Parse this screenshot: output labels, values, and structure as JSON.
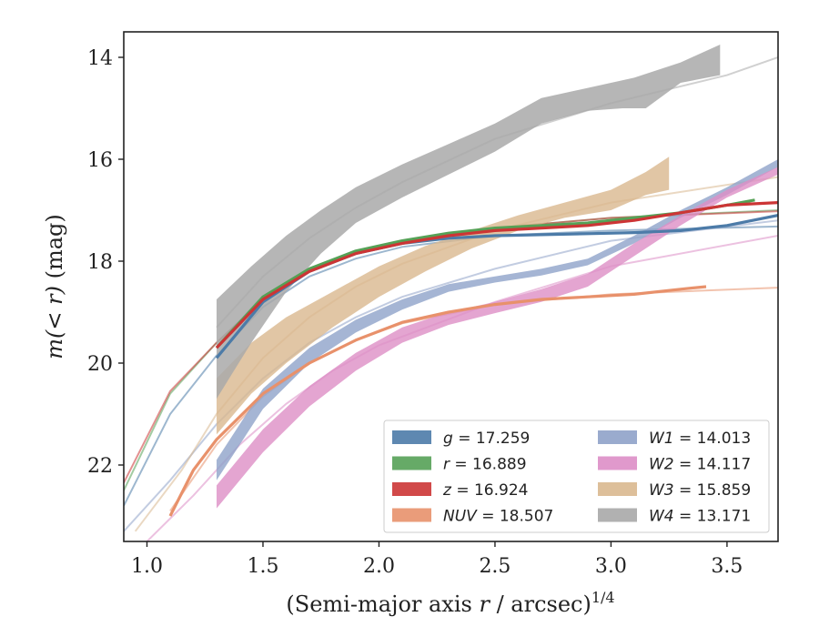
{
  "chart_data": {
    "type": "line",
    "title": "",
    "xlabel_main": "(Semi-major axis ",
    "xlabel_var": "r",
    "xlabel_tail": " / arcsec)",
    "xlabel_exp": "1/4",
    "ylabel_prefix": "m",
    "ylabel_math": "(< r)",
    "ylabel_unit": " (mag)",
    "xlim": [
      0.9,
      3.72
    ],
    "ylim": [
      23.5,
      13.5
    ],
    "y_inverted": true,
    "xticks": [
      1.0,
      1.5,
      2.0,
      2.5,
      3.0,
      3.5
    ],
    "xtick_labels": [
      "1.0",
      "1.5",
      "2.0",
      "2.5",
      "3.0",
      "3.5"
    ],
    "yticks": [
      14,
      16,
      18,
      20,
      22
    ],
    "ytick_labels": [
      "14",
      "16",
      "18",
      "20",
      "22"
    ],
    "grid": false,
    "legend_position": "lower-right",
    "series": [
      {
        "name": "g = 17.259",
        "band": "g",
        "mag": "17.259",
        "color": "#4c7ba8",
        "kind": "line",
        "data": [
          [
            1.3,
            19.9
          ],
          [
            1.5,
            18.8
          ],
          [
            1.7,
            18.2
          ],
          [
            1.9,
            17.85
          ],
          [
            2.1,
            17.65
          ],
          [
            2.3,
            17.55
          ],
          [
            2.5,
            17.5
          ],
          [
            2.7,
            17.48
          ],
          [
            2.9,
            17.46
          ],
          [
            3.1,
            17.44
          ],
          [
            3.3,
            17.4
          ],
          [
            3.5,
            17.3
          ],
          [
            3.72,
            17.1
          ]
        ],
        "model": [
          [
            0.9,
            22.8
          ],
          [
            1.1,
            21.0
          ],
          [
            1.3,
            19.85
          ],
          [
            1.5,
            18.9
          ],
          [
            1.7,
            18.3
          ],
          [
            1.9,
            17.95
          ],
          [
            2.1,
            17.72
          ],
          [
            2.5,
            17.5
          ],
          [
            3.0,
            17.4
          ],
          [
            3.72,
            17.32
          ]
        ]
      },
      {
        "name": "r = 16.889",
        "band": "r",
        "mag": "16.889",
        "color": "#55a156",
        "kind": "line",
        "data": [
          [
            1.3,
            19.7
          ],
          [
            1.5,
            18.7
          ],
          [
            1.7,
            18.15
          ],
          [
            1.9,
            17.8
          ],
          [
            2.1,
            17.6
          ],
          [
            2.3,
            17.45
          ],
          [
            2.5,
            17.35
          ],
          [
            2.7,
            17.3
          ],
          [
            2.9,
            17.25
          ],
          [
            3.1,
            17.15
          ],
          [
            3.3,
            17.05
          ],
          [
            3.5,
            16.9
          ],
          [
            3.62,
            16.8
          ]
        ],
        "model": [
          [
            0.9,
            22.5
          ],
          [
            1.1,
            20.6
          ],
          [
            1.3,
            19.6
          ],
          [
            1.5,
            18.75
          ],
          [
            1.7,
            18.2
          ],
          [
            1.9,
            17.85
          ],
          [
            2.1,
            17.62
          ],
          [
            2.5,
            17.35
          ],
          [
            3.0,
            17.15
          ],
          [
            3.72,
            17.0
          ]
        ]
      },
      {
        "name": "z = 16.924",
        "band": "z",
        "mag": "16.924",
        "color": "#cc3535",
        "kind": "line",
        "data": [
          [
            1.3,
            19.7
          ],
          [
            1.5,
            18.75
          ],
          [
            1.7,
            18.2
          ],
          [
            1.9,
            17.85
          ],
          [
            2.1,
            17.65
          ],
          [
            2.3,
            17.5
          ],
          [
            2.5,
            17.4
          ],
          [
            2.7,
            17.35
          ],
          [
            2.9,
            17.3
          ],
          [
            3.1,
            17.2
          ],
          [
            3.3,
            17.05
          ],
          [
            3.5,
            16.9
          ],
          [
            3.72,
            16.85
          ]
        ],
        "model": [
          [
            0.9,
            22.35
          ],
          [
            1.1,
            20.55
          ],
          [
            1.3,
            19.6
          ],
          [
            1.5,
            18.75
          ],
          [
            1.7,
            18.2
          ],
          [
            1.9,
            17.85
          ],
          [
            2.1,
            17.62
          ],
          [
            2.5,
            17.35
          ],
          [
            3.0,
            17.15
          ],
          [
            3.72,
            17.02
          ]
        ]
      },
      {
        "name": "NUV = 18.507",
        "band": "NUV",
        "mag": "18.507",
        "color": "#e8916b",
        "kind": "line",
        "data": [
          [
            1.1,
            23.0
          ],
          [
            1.2,
            22.1
          ],
          [
            1.3,
            21.5
          ],
          [
            1.5,
            20.6
          ],
          [
            1.7,
            20.0
          ],
          [
            1.9,
            19.55
          ],
          [
            2.1,
            19.2
          ],
          [
            2.3,
            19.0
          ],
          [
            2.5,
            18.85
          ],
          [
            2.7,
            18.75
          ],
          [
            2.9,
            18.7
          ],
          [
            3.1,
            18.65
          ],
          [
            3.3,
            18.55
          ],
          [
            3.41,
            18.5
          ]
        ],
        "model": [
          [
            1.1,
            22.9
          ],
          [
            1.3,
            21.6
          ],
          [
            1.5,
            20.65
          ],
          [
            1.7,
            20.0
          ],
          [
            1.9,
            19.55
          ],
          [
            2.1,
            19.22
          ],
          [
            2.5,
            18.85
          ],
          [
            3.0,
            18.65
          ],
          [
            3.72,
            18.52
          ]
        ]
      },
      {
        "name": "W1 = 14.013",
        "band": "W1",
        "mag": "14.013",
        "color": "#8fa2c9",
        "kind": "band",
        "upper": [
          [
            1.3,
            21.9
          ],
          [
            1.5,
            20.5
          ],
          [
            1.7,
            19.7
          ],
          [
            1.9,
            19.15
          ],
          [
            2.1,
            18.75
          ],
          [
            2.3,
            18.45
          ],
          [
            2.5,
            18.3
          ],
          [
            2.7,
            18.15
          ],
          [
            2.9,
            17.95
          ],
          [
            3.1,
            17.5
          ],
          [
            3.3,
            17.0
          ],
          [
            3.5,
            16.55
          ],
          [
            3.72,
            16.0
          ]
        ],
        "lower": [
          [
            1.3,
            22.3
          ],
          [
            1.5,
            20.9
          ],
          [
            1.7,
            20.0
          ],
          [
            1.9,
            19.4
          ],
          [
            2.1,
            18.95
          ],
          [
            2.3,
            18.6
          ],
          [
            2.5,
            18.42
          ],
          [
            2.7,
            18.28
          ],
          [
            2.9,
            18.08
          ],
          [
            3.1,
            17.65
          ],
          [
            3.3,
            17.15
          ],
          [
            3.5,
            16.7
          ],
          [
            3.72,
            16.15
          ]
        ],
        "model": [
          [
            0.9,
            23.3
          ],
          [
            1.1,
            22.3
          ],
          [
            1.3,
            21.2
          ],
          [
            1.5,
            20.3
          ],
          [
            1.7,
            19.6
          ],
          [
            1.9,
            19.1
          ],
          [
            2.1,
            18.7
          ],
          [
            2.5,
            18.15
          ],
          [
            3.0,
            17.6
          ],
          [
            3.72,
            17.2
          ]
        ]
      },
      {
        "name": "W2 = 14.117",
        "band": "W2",
        "mag": "14.117",
        "color": "#dd8ec6",
        "kind": "band",
        "upper": [
          [
            1.3,
            22.4
          ],
          [
            1.5,
            21.3
          ],
          [
            1.7,
            20.45
          ],
          [
            1.9,
            19.8
          ],
          [
            2.1,
            19.3
          ],
          [
            2.3,
            19.0
          ],
          [
            2.5,
            18.8
          ],
          [
            2.7,
            18.55
          ],
          [
            2.9,
            18.25
          ],
          [
            3.1,
            17.65
          ],
          [
            3.3,
            17.1
          ],
          [
            3.5,
            16.6
          ],
          [
            3.72,
            16.15
          ]
        ],
        "lower": [
          [
            1.3,
            22.85
          ],
          [
            1.5,
            21.75
          ],
          [
            1.7,
            20.85
          ],
          [
            1.9,
            20.15
          ],
          [
            2.1,
            19.6
          ],
          [
            2.3,
            19.25
          ],
          [
            2.5,
            19.02
          ],
          [
            2.7,
            18.8
          ],
          [
            2.9,
            18.5
          ],
          [
            3.1,
            17.9
          ],
          [
            3.3,
            17.3
          ],
          [
            3.5,
            16.75
          ],
          [
            3.72,
            16.3
          ]
        ],
        "model": [
          [
            1.0,
            23.5
          ],
          [
            1.2,
            22.6
          ],
          [
            1.4,
            21.6
          ],
          [
            1.6,
            20.8
          ],
          [
            1.8,
            20.15
          ],
          [
            2.0,
            19.65
          ],
          [
            2.5,
            18.8
          ],
          [
            3.0,
            18.1
          ],
          [
            3.72,
            17.5
          ]
        ]
      },
      {
        "name": "W3 = 15.859",
        "band": "W3",
        "mag": "15.859",
        "color": "#d9b88f",
        "kind": "band",
        "upper": [
          [
            1.3,
            20.3
          ],
          [
            1.45,
            19.6
          ],
          [
            1.6,
            19.1
          ],
          [
            1.8,
            18.6
          ],
          [
            2.0,
            18.1
          ],
          [
            2.2,
            17.7
          ],
          [
            2.4,
            17.4
          ],
          [
            2.6,
            17.1
          ],
          [
            2.8,
            16.85
          ],
          [
            3.0,
            16.6
          ],
          [
            3.15,
            16.25
          ],
          [
            3.25,
            15.95
          ]
        ],
        "lower": [
          [
            1.3,
            21.4
          ],
          [
            1.45,
            20.6
          ],
          [
            1.6,
            20.0
          ],
          [
            1.8,
            19.3
          ],
          [
            2.0,
            18.7
          ],
          [
            2.2,
            18.2
          ],
          [
            2.4,
            17.75
          ],
          [
            2.6,
            17.4
          ],
          [
            2.8,
            17.15
          ],
          [
            3.0,
            17.0
          ],
          [
            3.15,
            16.7
          ],
          [
            3.25,
            16.6
          ]
        ],
        "model": [
          [
            0.95,
            23.3
          ],
          [
            1.15,
            22.1
          ],
          [
            1.3,
            21.0
          ],
          [
            1.5,
            19.9
          ],
          [
            1.7,
            19.1
          ],
          [
            1.9,
            18.5
          ],
          [
            2.1,
            18.05
          ],
          [
            2.5,
            17.4
          ],
          [
            3.0,
            16.85
          ],
          [
            3.72,
            16.35
          ]
        ]
      },
      {
        "name": "W4 = 13.171",
        "band": "W4",
        "mag": "13.171",
        "color": "#a9a9a9",
        "kind": "band",
        "upper": [
          [
            1.3,
            18.75
          ],
          [
            1.45,
            18.1
          ],
          [
            1.6,
            17.5
          ],
          [
            1.75,
            17.0
          ],
          [
            1.9,
            16.55
          ],
          [
            2.1,
            16.1
          ],
          [
            2.3,
            15.7
          ],
          [
            2.5,
            15.3
          ],
          [
            2.7,
            14.8
          ],
          [
            2.9,
            14.6
          ],
          [
            3.1,
            14.4
          ],
          [
            3.3,
            14.1
          ],
          [
            3.47,
            13.75
          ]
        ],
        "lower": [
          [
            1.3,
            20.7
          ],
          [
            1.45,
            19.6
          ],
          [
            1.6,
            18.6
          ],
          [
            1.75,
            17.85
          ],
          [
            1.9,
            17.25
          ],
          [
            2.1,
            16.75
          ],
          [
            2.3,
            16.3
          ],
          [
            2.5,
            15.85
          ],
          [
            2.7,
            15.3
          ],
          [
            2.9,
            15.05
          ],
          [
            3.05,
            15.0
          ],
          [
            3.15,
            15.0
          ],
          [
            3.3,
            14.5
          ],
          [
            3.47,
            14.35
          ]
        ],
        "model": [
          [
            1.3,
            19.3
          ],
          [
            1.5,
            18.3
          ],
          [
            1.7,
            17.55
          ],
          [
            1.9,
            16.95
          ],
          [
            2.1,
            16.45
          ],
          [
            2.5,
            15.6
          ],
          [
            3.0,
            14.9
          ],
          [
            3.5,
            14.35
          ],
          [
            3.72,
            14.0
          ]
        ]
      }
    ]
  }
}
